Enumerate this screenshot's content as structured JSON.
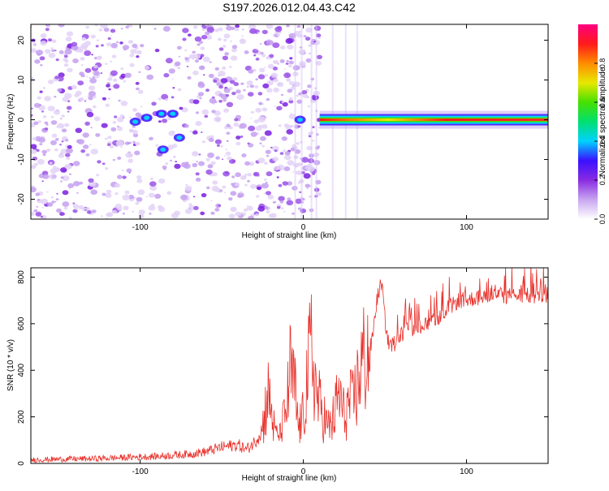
{
  "title": "S197.2026.012.04.43.C42",
  "colors": {
    "axis": "#000000",
    "snr_line": "#e8302a",
    "colorbar": [
      "#ffffff",
      "#c8a6f0",
      "#8a2be2",
      "#3a10ff",
      "#00d2ff",
      "#00e070",
      "#46e000",
      "#e8e800",
      "#ff8c00",
      "#ff1a1a",
      "#ff0080"
    ]
  },
  "chart_data": [
    {
      "type": "heatmap",
      "name": "spectrogram",
      "xlabel": "Height of straight line (km)",
      "ylabel": "Frequency (Hz)",
      "xlim": [
        -167,
        150
      ],
      "ylim": [
        -25,
        24
      ],
      "x_ticks": [
        -100,
        0,
        100
      ],
      "y_ticks": [
        -20,
        -10,
        0,
        10,
        20
      ],
      "colorbar": {
        "label": "Normalized spectral amplitude",
        "range": [
          0,
          1
        ],
        "ticks": [
          "0.0",
          "0.2",
          "0.4",
          "0.6",
          "0.8"
        ],
        "tick_values": [
          0.0,
          0.2,
          0.4,
          0.6,
          0.8
        ]
      },
      "features": {
        "noise_region_x": [
          -167,
          10
        ],
        "carrier_line": {
          "x_start": 10,
          "x_end": 150,
          "frequency_hz": 0,
          "amplitude": 0.85
        },
        "bright_spots": [
          {
            "x": -103,
            "y": -0.5,
            "amplitude": 0.3
          },
          {
            "x": -96,
            "y": 0.5,
            "amplitude": 0.25
          },
          {
            "x": -87,
            "y": 1.5,
            "amplitude": 0.2
          },
          {
            "x": -80,
            "y": 1.5,
            "amplitude": 0.3
          },
          {
            "x": -86,
            "y": -7.5,
            "amplitude": 0.3
          },
          {
            "x": -76,
            "y": -4.5,
            "amplitude": 0.25
          },
          {
            "x": -2,
            "y": 0,
            "amplitude": 0.3
          }
        ]
      }
    },
    {
      "type": "line",
      "name": "snr",
      "xlabel": "Height of straight line (km)",
      "ylabel": "SNR (10 * v/v)",
      "xlim": [
        -167,
        150
      ],
      "ylim": [
        0,
        840
      ],
      "x_ticks": [
        -100,
        0,
        100
      ],
      "y_ticks": [
        0,
        200,
        400,
        600,
        800
      ],
      "series": [
        {
          "name": "SNR",
          "x": [
            -167,
            -150,
            -130,
            -110,
            -100,
            -90,
            -80,
            -70,
            -60,
            -55,
            -50,
            -45,
            -40,
            -35,
            -30,
            -25,
            -22,
            -20,
            -18,
            -15,
            -12,
            -10,
            -8,
            -5,
            -3,
            0,
            2,
            5,
            8,
            10,
            12,
            15,
            18,
            20,
            22,
            25,
            28,
            30,
            33,
            35,
            38,
            40,
            42,
            45,
            48,
            50,
            52,
            55,
            57,
            60,
            65,
            70,
            75,
            80,
            85,
            90,
            95,
            100,
            105,
            110,
            115,
            120,
            125,
            130,
            135,
            140,
            145,
            150
          ],
          "values": [
            15,
            18,
            20,
            25,
            28,
            30,
            35,
            40,
            50,
            60,
            70,
            75,
            80,
            60,
            90,
            150,
            300,
            250,
            150,
            120,
            180,
            250,
            400,
            300,
            150,
            200,
            350,
            500,
            300,
            250,
            220,
            150,
            180,
            240,
            300,
            200,
            260,
            250,
            330,
            420,
            460,
            480,
            520,
            700,
            780,
            620,
            520,
            510,
            520,
            555,
            575,
            585,
            600,
            610,
            630,
            670,
            700,
            700,
            710,
            715,
            720,
            720,
            720,
            720,
            720,
            720,
            720,
            720
          ]
        }
      ]
    }
  ]
}
